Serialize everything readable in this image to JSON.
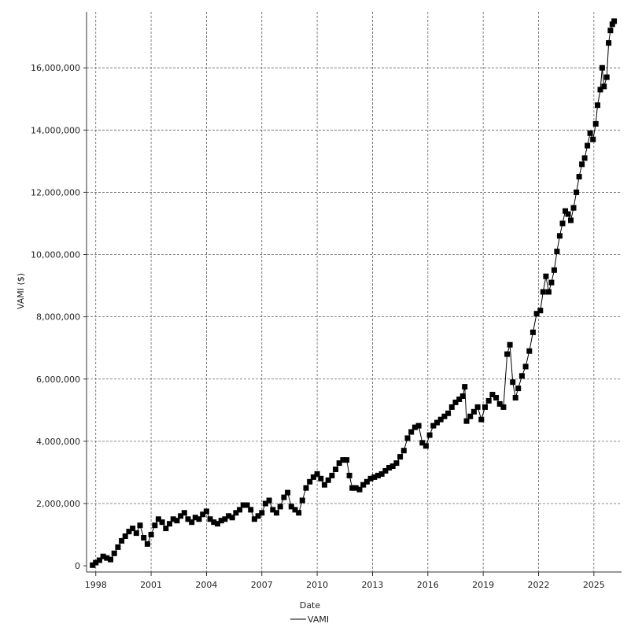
{
  "chart_data": {
    "type": "line",
    "xlabel": "Date",
    "ylabel": "VAMI ($)",
    "x_ticks": [
      "1998",
      "2001",
      "2004",
      "2007",
      "2010",
      "2013",
      "2016",
      "2019",
      "2022",
      "2025"
    ],
    "y_ticks": [
      "0",
      "2,000,000",
      "4,000,000",
      "6,000,000",
      "8,000,000",
      "10,000,000",
      "12,000,000",
      "14,000,000",
      "16,000,000"
    ],
    "xlim": [
      1997.5,
      2026.5
    ],
    "ylim": [
      -200000,
      17800000
    ],
    "grid": true,
    "legend_position": "bottom",
    "series": [
      {
        "name": "VAMI",
        "color": "#000000",
        "marker": "square",
        "points": [
          [
            1997.83,
            20000
          ],
          [
            1998.0,
            100000
          ],
          [
            1998.2,
            180000
          ],
          [
            1998.4,
            300000
          ],
          [
            1998.6,
            250000
          ],
          [
            1998.8,
            200000
          ],
          [
            1999.0,
            400000
          ],
          [
            1999.2,
            600000
          ],
          [
            1999.4,
            800000
          ],
          [
            1999.6,
            950000
          ],
          [
            1999.8,
            1100000
          ],
          [
            2000.0,
            1200000
          ],
          [
            2000.2,
            1050000
          ],
          [
            2000.4,
            1300000
          ],
          [
            2000.6,
            900000
          ],
          [
            2000.8,
            700000
          ],
          [
            2001.0,
            1000000
          ],
          [
            2001.2,
            1300000
          ],
          [
            2001.4,
            1500000
          ],
          [
            2001.6,
            1400000
          ],
          [
            2001.8,
            1200000
          ],
          [
            2002.0,
            1350000
          ],
          [
            2002.2,
            1500000
          ],
          [
            2002.4,
            1450000
          ],
          [
            2002.6,
            1600000
          ],
          [
            2002.8,
            1700000
          ],
          [
            2003.0,
            1500000
          ],
          [
            2003.2,
            1400000
          ],
          [
            2003.4,
            1550000
          ],
          [
            2003.6,
            1500000
          ],
          [
            2003.8,
            1650000
          ],
          [
            2004.0,
            1750000
          ],
          [
            2004.2,
            1500000
          ],
          [
            2004.4,
            1400000
          ],
          [
            2004.6,
            1350000
          ],
          [
            2004.8,
            1450000
          ],
          [
            2005.0,
            1500000
          ],
          [
            2005.2,
            1600000
          ],
          [
            2005.4,
            1550000
          ],
          [
            2005.6,
            1700000
          ],
          [
            2005.8,
            1800000
          ],
          [
            2006.0,
            1950000
          ],
          [
            2006.2,
            1950000
          ],
          [
            2006.4,
            1800000
          ],
          [
            2006.6,
            1500000
          ],
          [
            2006.8,
            1600000
          ],
          [
            2007.0,
            1700000
          ],
          [
            2007.2,
            2000000
          ],
          [
            2007.4,
            2100000
          ],
          [
            2007.6,
            1800000
          ],
          [
            2007.8,
            1700000
          ],
          [
            2008.0,
            1900000
          ],
          [
            2008.2,
            2200000
          ],
          [
            2008.4,
            2350000
          ],
          [
            2008.6,
            1900000
          ],
          [
            2008.8,
            1800000
          ],
          [
            2009.0,
            1700000
          ],
          [
            2009.2,
            2100000
          ],
          [
            2009.4,
            2500000
          ],
          [
            2009.6,
            2700000
          ],
          [
            2009.8,
            2850000
          ],
          [
            2010.0,
            2950000
          ],
          [
            2010.2,
            2800000
          ],
          [
            2010.4,
            2600000
          ],
          [
            2010.6,
            2750000
          ],
          [
            2010.8,
            2900000
          ],
          [
            2011.0,
            3100000
          ],
          [
            2011.2,
            3300000
          ],
          [
            2011.4,
            3400000
          ],
          [
            2011.6,
            3400000
          ],
          [
            2011.75,
            2900000
          ],
          [
            2011.9,
            2500000
          ],
          [
            2012.1,
            2500000
          ],
          [
            2012.3,
            2450000
          ],
          [
            2012.5,
            2600000
          ],
          [
            2012.7,
            2700000
          ],
          [
            2012.9,
            2800000
          ],
          [
            2013.1,
            2850000
          ],
          [
            2013.3,
            2900000
          ],
          [
            2013.5,
            2950000
          ],
          [
            2013.7,
            3050000
          ],
          [
            2013.9,
            3150000
          ],
          [
            2014.1,
            3200000
          ],
          [
            2014.3,
            3300000
          ],
          [
            2014.5,
            3500000
          ],
          [
            2014.7,
            3700000
          ],
          [
            2014.9,
            4100000
          ],
          [
            2015.1,
            4300000
          ],
          [
            2015.3,
            4450000
          ],
          [
            2015.5,
            4500000
          ],
          [
            2015.7,
            3950000
          ],
          [
            2015.9,
            3850000
          ],
          [
            2016.1,
            4200000
          ],
          [
            2016.3,
            4500000
          ],
          [
            2016.5,
            4600000
          ],
          [
            2016.7,
            4700000
          ],
          [
            2016.9,
            4800000
          ],
          [
            2017.1,
            4900000
          ],
          [
            2017.3,
            5100000
          ],
          [
            2017.5,
            5250000
          ],
          [
            2017.7,
            5350000
          ],
          [
            2017.9,
            5450000
          ],
          [
            2018.0,
            5750000
          ],
          [
            2018.1,
            4650000
          ],
          [
            2018.3,
            4800000
          ],
          [
            2018.5,
            4950000
          ],
          [
            2018.7,
            5100000
          ],
          [
            2018.9,
            4700000
          ],
          [
            2019.1,
            5100000
          ],
          [
            2019.3,
            5300000
          ],
          [
            2019.5,
            5500000
          ],
          [
            2019.7,
            5400000
          ],
          [
            2019.9,
            5200000
          ],
          [
            2020.1,
            5100000
          ],
          [
            2020.3,
            6800000
          ],
          [
            2020.45,
            7100000
          ],
          [
            2020.6,
            5900000
          ],
          [
            2020.75,
            5400000
          ],
          [
            2020.9,
            5700000
          ],
          [
            2021.1,
            6100000
          ],
          [
            2021.3,
            6400000
          ],
          [
            2021.5,
            6900000
          ],
          [
            2021.7,
            7500000
          ],
          [
            2021.9,
            8100000
          ],
          [
            2022.1,
            8200000
          ],
          [
            2022.25,
            8800000
          ],
          [
            2022.4,
            9300000
          ],
          [
            2022.55,
            8800000
          ],
          [
            2022.7,
            9100000
          ],
          [
            2022.85,
            9500000
          ],
          [
            2023.0,
            10100000
          ],
          [
            2023.15,
            10600000
          ],
          [
            2023.3,
            11000000
          ],
          [
            2023.45,
            11400000
          ],
          [
            2023.6,
            11300000
          ],
          [
            2023.75,
            11100000
          ],
          [
            2023.9,
            11500000
          ],
          [
            2024.05,
            12000000
          ],
          [
            2024.2,
            12500000
          ],
          [
            2024.35,
            12900000
          ],
          [
            2024.5,
            13100000
          ],
          [
            2024.65,
            13500000
          ],
          [
            2024.8,
            13900000
          ],
          [
            2024.95,
            13700000
          ],
          [
            2025.1,
            14200000
          ],
          [
            2025.2,
            14800000
          ],
          [
            2025.35,
            15300000
          ],
          [
            2025.45,
            16000000
          ],
          [
            2025.55,
            15400000
          ],
          [
            2025.7,
            15700000
          ],
          [
            2025.8,
            16800000
          ],
          [
            2025.9,
            17200000
          ],
          [
            2026.0,
            17400000
          ],
          [
            2026.1,
            17500000
          ]
        ]
      }
    ]
  }
}
